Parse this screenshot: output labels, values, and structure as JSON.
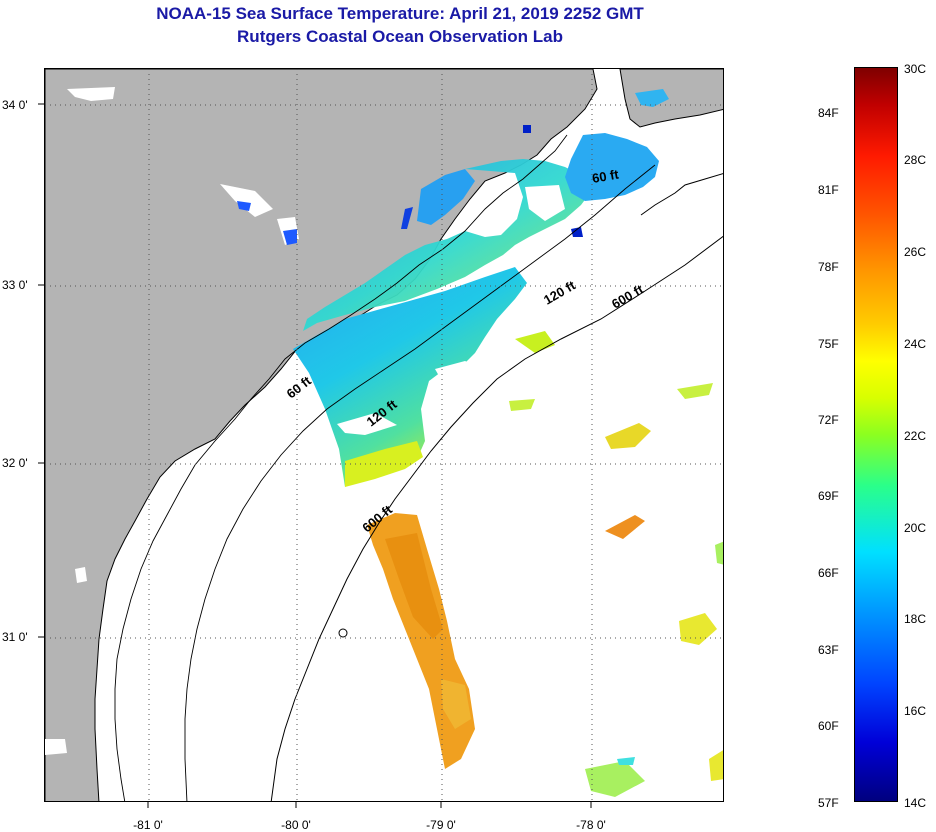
{
  "title": {
    "line1": "NOAA-15 Sea Surface Temperature:  April 21, 2019 2252 GMT",
    "line2": "Rutgers Coastal Ocean Observation Lab"
  },
  "map": {
    "lat_ticks": [
      "34 0'",
      "33 0'",
      "32 0'",
      "31 0'"
    ],
    "lon_ticks": [
      "-81 0'",
      "-80 0'",
      "-79 0'",
      "-78 0'"
    ],
    "contours": [
      "60 ft",
      "60 ft",
      "120 ft",
      "120 ft",
      "600 ft",
      "600 ft"
    ],
    "colors": {
      "land": "#b4b4b4",
      "ocean_nodata": "#ffffff",
      "coastline": "#000000",
      "grid": "#555555"
    }
  },
  "colorbar": {
    "fahrenheit_labels": [
      "84F",
      "81F",
      "78F",
      "75F",
      "72F",
      "69F",
      "66F",
      "63F",
      "60F",
      "57F"
    ],
    "celsius_labels": [
      "30C",
      "28C",
      "26C",
      "24C",
      "22C",
      "20C",
      "18C",
      "16C",
      "14C"
    ],
    "min_c": 14,
    "max_c": 30
  }
}
